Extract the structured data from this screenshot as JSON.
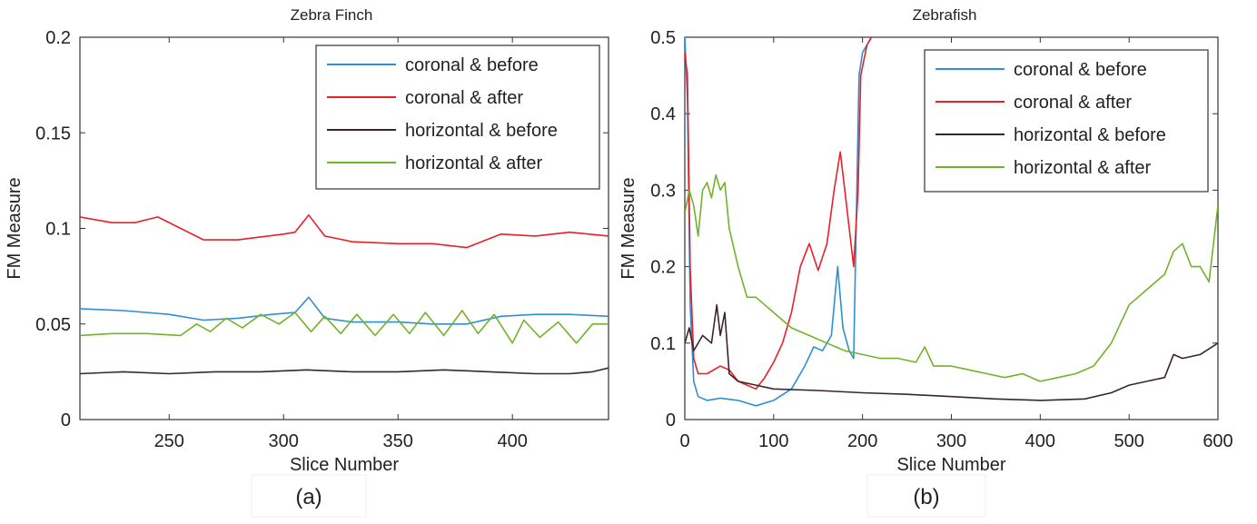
{
  "chart_data": [
    {
      "type": "line",
      "title": "Zebra Finch",
      "xlabel": "Slice Number",
      "ylabel": "FM Measure",
      "xlim": [
        211,
        442
      ],
      "ylim": [
        0,
        0.2
      ],
      "xticks": [
        250,
        300,
        350,
        400
      ],
      "yticks": [
        0,
        0.05,
        0.1,
        0.15,
        0.2
      ],
      "ytick_labels": [
        "0",
        "0.05",
        "0.1",
        "0.15",
        "0.2"
      ],
      "legend_position": "top-right",
      "caption": "(a)",
      "series": [
        {
          "name": "coronal & before",
          "color": "#2f8fd6",
          "x": [
            211,
            230,
            250,
            265,
            280,
            295,
            305,
            311,
            318,
            330,
            350,
            365,
            380,
            395,
            410,
            425,
            442
          ],
          "y": [
            0.058,
            0.057,
            0.055,
            0.052,
            0.053,
            0.055,
            0.056,
            0.064,
            0.053,
            0.051,
            0.051,
            0.05,
            0.05,
            0.054,
            0.055,
            0.055,
            0.054
          ]
        },
        {
          "name": "coronal & after",
          "color": "#e8202a",
          "x": [
            211,
            225,
            235,
            245,
            255,
            265,
            280,
            300,
            305,
            311,
            318,
            330,
            350,
            365,
            380,
            395,
            410,
            425,
            442
          ],
          "y": [
            0.106,
            0.103,
            0.103,
            0.106,
            0.1,
            0.094,
            0.094,
            0.097,
            0.098,
            0.107,
            0.096,
            0.093,
            0.092,
            0.092,
            0.09,
            0.097,
            0.096,
            0.098,
            0.096
          ]
        },
        {
          "name": "horizontal & before",
          "color": "#3b2527",
          "x": [
            211,
            230,
            250,
            270,
            290,
            310,
            330,
            350,
            370,
            390,
            410,
            425,
            435,
            442
          ],
          "y": [
            0.024,
            0.025,
            0.024,
            0.025,
            0.025,
            0.026,
            0.025,
            0.025,
            0.026,
            0.025,
            0.024,
            0.024,
            0.025,
            0.027
          ]
        },
        {
          "name": "horizontal & after",
          "color": "#72b32a",
          "x": [
            211,
            225,
            240,
            255,
            262,
            268,
            275,
            282,
            290,
            298,
            305,
            312,
            318,
            325,
            332,
            340,
            348,
            355,
            362,
            370,
            378,
            385,
            392,
            400,
            405,
            412,
            420,
            428,
            435,
            442
          ],
          "y": [
            0.044,
            0.045,
            0.045,
            0.044,
            0.05,
            0.046,
            0.053,
            0.048,
            0.055,
            0.05,
            0.056,
            0.046,
            0.054,
            0.045,
            0.055,
            0.044,
            0.055,
            0.045,
            0.056,
            0.044,
            0.057,
            0.045,
            0.055,
            0.04,
            0.052,
            0.043,
            0.051,
            0.04,
            0.05,
            0.05
          ]
        }
      ]
    },
    {
      "type": "line",
      "title": "Zebrafish",
      "xlabel": "Slice Number",
      "ylabel": "FM Measure",
      "xlim": [
        0,
        600
      ],
      "ylim": [
        0,
        0.5
      ],
      "xticks": [
        0,
        100,
        200,
        300,
        400,
        500,
        600
      ],
      "yticks": [
        0,
        0.1,
        0.2,
        0.3,
        0.4,
        0.5
      ],
      "ytick_labels": [
        "0",
        "0.1",
        "0.2",
        "0.3",
        "0.4",
        "0.5"
      ],
      "legend_position": "top-right",
      "caption": "(b)",
      "series": [
        {
          "name": "coronal & before",
          "color": "#2f8fd6",
          "x": [
            0,
            3,
            6,
            10,
            15,
            25,
            40,
            60,
            80,
            100,
            120,
            135,
            145,
            155,
            165,
            172,
            178,
            185,
            190,
            196,
            200,
            205,
            210
          ],
          "y": [
            0.5,
            0.42,
            0.15,
            0.05,
            0.03,
            0.025,
            0.028,
            0.025,
            0.018,
            0.025,
            0.04,
            0.07,
            0.095,
            0.09,
            0.11,
            0.2,
            0.12,
            0.09,
            0.08,
            0.45,
            0.48,
            0.49,
            0.5
          ]
        },
        {
          "name": "coronal & after",
          "color": "#e8202a",
          "x": [
            0,
            3,
            6,
            10,
            15,
            25,
            40,
            50,
            60,
            70,
            80,
            90,
            100,
            110,
            120,
            130,
            140,
            150,
            160,
            168,
            175,
            182,
            190,
            195,
            198,
            205,
            210
          ],
          "y": [
            0.48,
            0.45,
            0.2,
            0.08,
            0.06,
            0.06,
            0.07,
            0.065,
            0.05,
            0.045,
            0.04,
            0.055,
            0.075,
            0.1,
            0.14,
            0.2,
            0.23,
            0.195,
            0.23,
            0.3,
            0.35,
            0.28,
            0.2,
            0.3,
            0.45,
            0.49,
            0.5
          ]
        },
        {
          "name": "horizontal & before",
          "color": "#3b2527",
          "x": [
            0,
            5,
            10,
            20,
            30,
            36,
            40,
            45,
            50,
            60,
            80,
            100,
            150,
            200,
            250,
            300,
            350,
            400,
            450,
            480,
            500,
            520,
            540,
            550,
            560,
            580,
            600
          ],
          "y": [
            0.1,
            0.12,
            0.09,
            0.11,
            0.1,
            0.15,
            0.11,
            0.14,
            0.06,
            0.05,
            0.045,
            0.04,
            0.038,
            0.035,
            0.033,
            0.03,
            0.027,
            0.025,
            0.027,
            0.035,
            0.045,
            0.05,
            0.055,
            0.085,
            0.08,
            0.085,
            0.1
          ]
        },
        {
          "name": "horizontal & after",
          "color": "#72b32a",
          "x": [
            0,
            5,
            10,
            15,
            20,
            25,
            30,
            35,
            40,
            45,
            50,
            60,
            70,
            80,
            90,
            100,
            120,
            140,
            160,
            180,
            200,
            220,
            240,
            260,
            270,
            280,
            300,
            320,
            340,
            360,
            380,
            400,
            420,
            440,
            460,
            480,
            500,
            520,
            540,
            550,
            560,
            570,
            580,
            590,
            600
          ],
          "y": [
            0.27,
            0.3,
            0.28,
            0.24,
            0.3,
            0.31,
            0.29,
            0.32,
            0.3,
            0.31,
            0.25,
            0.2,
            0.16,
            0.16,
            0.15,
            0.14,
            0.12,
            0.11,
            0.1,
            0.09,
            0.085,
            0.08,
            0.08,
            0.075,
            0.095,
            0.07,
            0.07,
            0.065,
            0.06,
            0.055,
            0.06,
            0.05,
            0.055,
            0.06,
            0.07,
            0.1,
            0.15,
            0.17,
            0.19,
            0.22,
            0.23,
            0.2,
            0.2,
            0.18,
            0.28
          ]
        }
      ]
    }
  ]
}
